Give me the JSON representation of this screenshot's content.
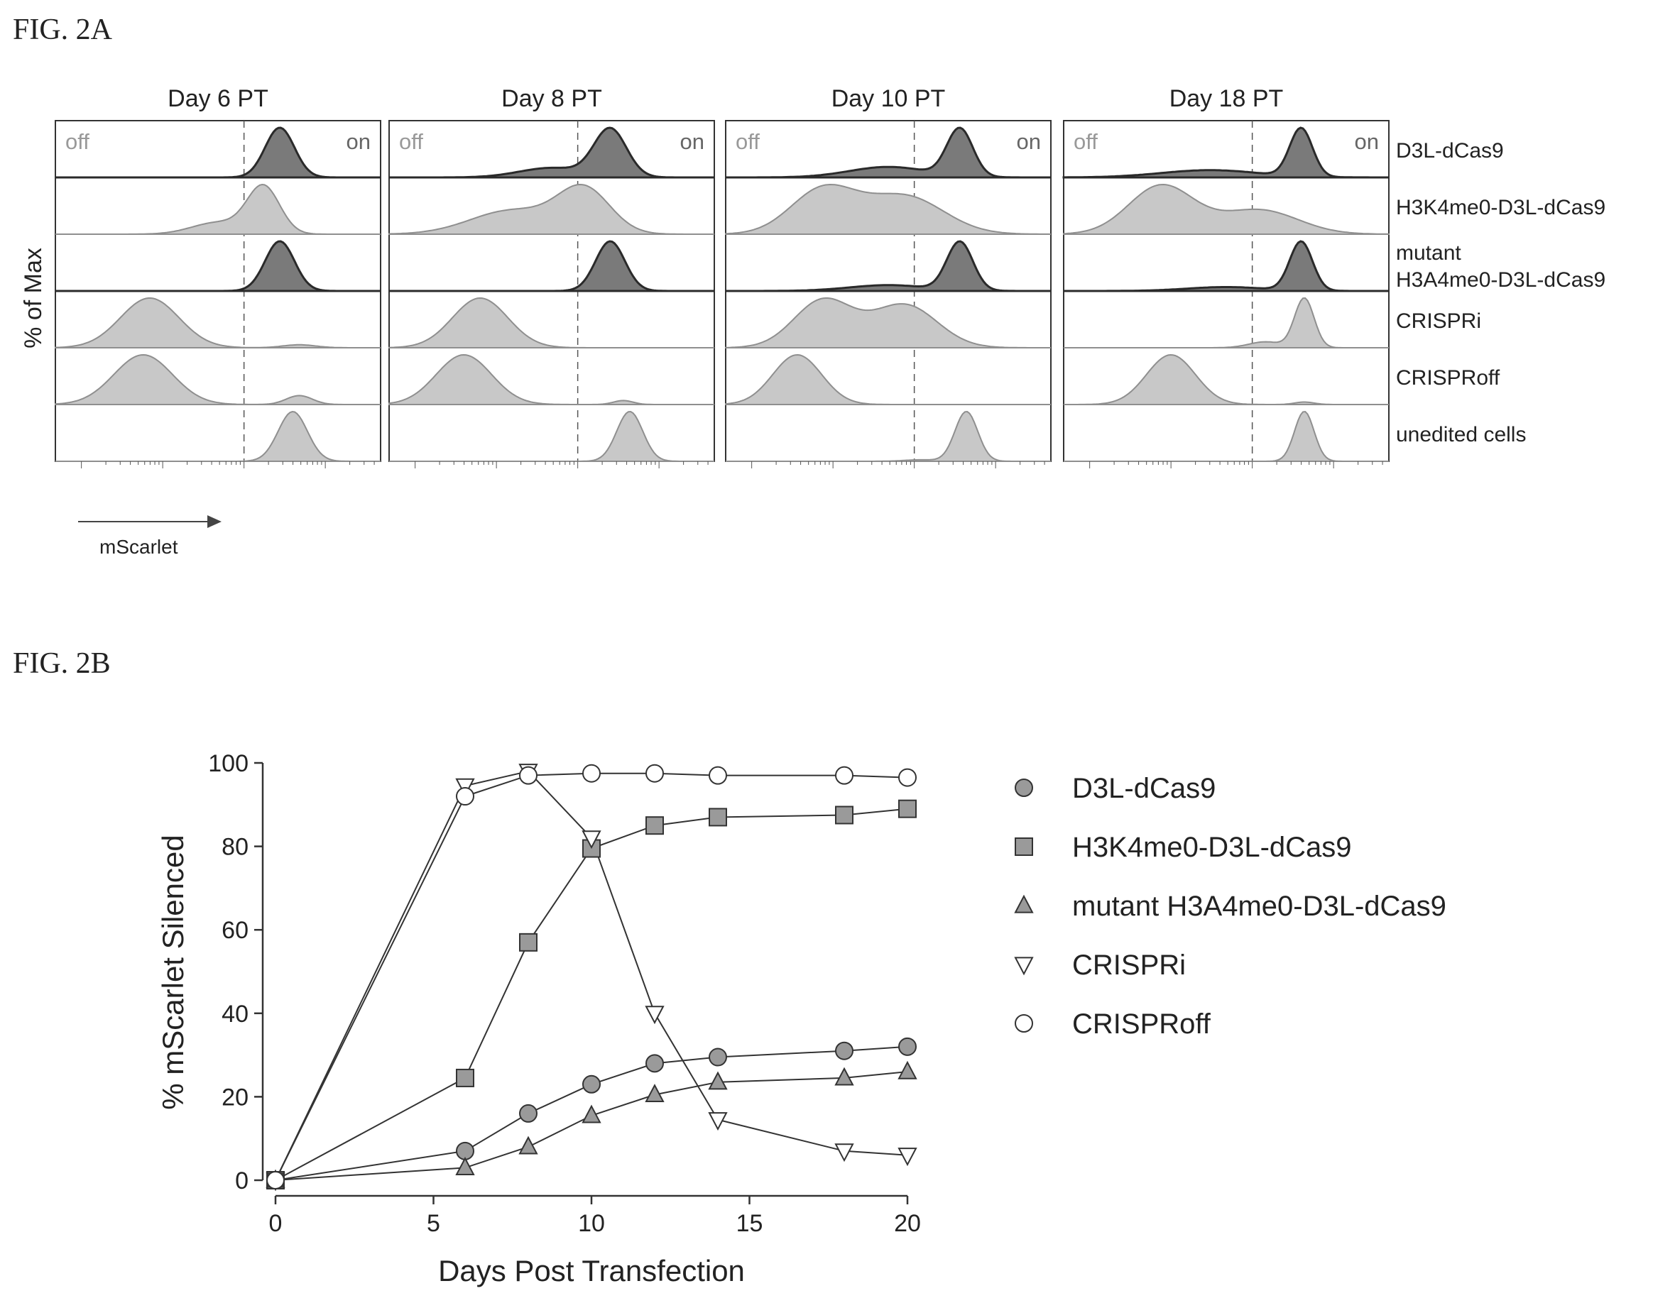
{
  "figures": {
    "a_label": "FIG. 2A",
    "b_label": "FIG. 2B"
  },
  "colors": {
    "light_fill": "#c8c8c8",
    "light_stroke": "#8f8f8f",
    "dark_fill": "#7a7a7a",
    "dark_stroke": "#2a2a2a",
    "marker_fill": "#9a9a9a",
    "axis": "#333333"
  },
  "chart_data": [
    {
      "id": "fig2a",
      "type": "area",
      "description_type": "histogram grid",
      "ylabel": "% of Max",
      "xlabel": "mScarlet",
      "columns": [
        "Day 6 PT",
        "Day 8 PT",
        "Day 10 PT",
        "Day 18 PT"
      ],
      "rows": [
        "D3L-dCas9",
        "H3K4me0-D3L-dCas9",
        "mutant",
        "CRISPRi",
        "CRISPRoff",
        "unedited cells"
      ],
      "row_label_extra": {
        "mutant": "H3A4me0-D3L-dCas9"
      },
      "gate_labels": {
        "off": "off",
        "on": "on"
      },
      "histograms": [
        [
          {
            "shade": "dark",
            "peaks": [
              [
                0.69,
                0.045,
                1.0
              ]
            ]
          },
          {
            "shade": "light",
            "peaks": [
              [
                0.64,
                0.05,
                1.0
              ],
              [
                0.5,
                0.08,
                0.25
              ]
            ]
          },
          {
            "shade": "dark",
            "peaks": [
              [
                0.69,
                0.045,
                1.0
              ]
            ]
          },
          {
            "shade": "light",
            "peaks": [
              [
                0.29,
                0.09,
                1.0
              ],
              [
                0.75,
                0.05,
                0.06
              ]
            ]
          },
          {
            "shade": "light",
            "peaks": [
              [
                0.27,
                0.09,
                1.0
              ],
              [
                0.75,
                0.04,
                0.18
              ]
            ]
          },
          {
            "shade": "light",
            "peaks": [
              [
                0.73,
                0.045,
                1.0
              ]
            ]
          }
        ],
        [
          {
            "shade": "dark",
            "peaks": [
              [
                0.68,
                0.05,
                1.0
              ],
              [
                0.5,
                0.1,
                0.2
              ]
            ]
          },
          {
            "shade": "light",
            "peaks": [
              [
                0.6,
                0.08,
                1.0
              ],
              [
                0.38,
                0.13,
                0.55
              ]
            ]
          },
          {
            "shade": "dark",
            "peaks": [
              [
                0.68,
                0.045,
                1.0
              ]
            ]
          },
          {
            "shade": "light",
            "peaks": [
              [
                0.28,
                0.085,
                1.0
              ]
            ]
          },
          {
            "shade": "light",
            "peaks": [
              [
                0.23,
                0.085,
                1.0
              ],
              [
                0.72,
                0.03,
                0.08
              ]
            ]
          },
          {
            "shade": "light",
            "peaks": [
              [
                0.74,
                0.04,
                1.0
              ]
            ]
          }
        ],
        [
          {
            "shade": "dark",
            "peaks": [
              [
                0.72,
                0.04,
                1.0
              ],
              [
                0.5,
                0.12,
                0.22
              ]
            ]
          },
          {
            "shade": "light",
            "peaks": [
              [
                0.3,
                0.1,
                1.0
              ],
              [
                0.55,
                0.12,
                0.85
              ]
            ]
          },
          {
            "shade": "dark",
            "peaks": [
              [
                0.72,
                0.04,
                1.0
              ],
              [
                0.5,
                0.12,
                0.12
              ]
            ]
          },
          {
            "shade": "light",
            "peaks": [
              [
                0.3,
                0.09,
                1.0
              ],
              [
                0.55,
                0.1,
                0.9
              ]
            ]
          },
          {
            "shade": "light",
            "peaks": [
              [
                0.22,
                0.075,
                1.0
              ]
            ]
          },
          {
            "shade": "light",
            "peaks": [
              [
                0.74,
                0.035,
                1.0
              ],
              [
                0.6,
                0.05,
                0.03
              ]
            ]
          }
        ],
        [
          {
            "shade": "dark",
            "peaks": [
              [
                0.73,
                0.035,
                1.0
              ],
              [
                0.45,
                0.15,
                0.15
              ]
            ]
          },
          {
            "shade": "light",
            "peaks": [
              [
                0.3,
                0.1,
                1.0
              ],
              [
                0.6,
                0.12,
                0.5
              ]
            ]
          },
          {
            "shade": "dark",
            "peaks": [
              [
                0.73,
                0.035,
                1.0
              ],
              [
                0.5,
                0.12,
                0.08
              ]
            ]
          },
          {
            "shade": "light",
            "peaks": [
              [
                0.74,
                0.03,
                1.0
              ],
              [
                0.62,
                0.05,
                0.12
              ]
            ]
          },
          {
            "shade": "light",
            "peaks": [
              [
                0.33,
                0.075,
                1.0
              ],
              [
                0.74,
                0.03,
                0.05
              ]
            ]
          },
          {
            "shade": "light",
            "peaks": [
              [
                0.74,
                0.03,
                1.0
              ]
            ]
          }
        ]
      ]
    },
    {
      "id": "fig2b",
      "type": "line",
      "xlabel": "Days Post Transfection",
      "ylabel": "% mScarlet Silenced",
      "xlim": [
        0,
        20
      ],
      "ylim": [
        0,
        100
      ],
      "xticks": [
        0,
        5,
        10,
        15,
        20
      ],
      "yticks": [
        0,
        20,
        40,
        60,
        80,
        100
      ],
      "legend": "right",
      "series": [
        {
          "name": "D3L-dCas9",
          "marker": "circle",
          "filled": true,
          "x": [
            0,
            6,
            8,
            10,
            12,
            14,
            18,
            20
          ],
          "y": [
            0,
            7,
            16,
            23,
            28,
            29.5,
            31,
            32
          ]
        },
        {
          "name": "H3K4me0-D3L-dCas9",
          "marker": "square",
          "filled": true,
          "x": [
            0,
            6,
            8,
            10,
            12,
            14,
            18,
            20
          ],
          "y": [
            0,
            24.5,
            57,
            79.5,
            85,
            87,
            87.5,
            89
          ]
        },
        {
          "name": "mutant H3A4me0-D3L-dCas9",
          "marker": "triangle-up",
          "filled": true,
          "x": [
            0,
            6,
            8,
            10,
            12,
            14,
            18,
            20
          ],
          "y": [
            0,
            3,
            8,
            15.5,
            20.5,
            23.5,
            24.5,
            26
          ]
        },
        {
          "name": "CRISPRi",
          "marker": "triangle-down",
          "filled": false,
          "x": [
            0,
            6,
            8,
            10,
            12,
            14,
            18,
            20
          ],
          "y": [
            0,
            94.5,
            98,
            82,
            40,
            14.5,
            7,
            6
          ]
        },
        {
          "name": "CRISPRoff",
          "marker": "circle",
          "filled": false,
          "x": [
            0,
            6,
            8,
            10,
            12,
            14,
            18,
            20
          ],
          "y": [
            0,
            92,
            97,
            97.5,
            97.5,
            97,
            97,
            96.5
          ]
        }
      ]
    }
  ]
}
